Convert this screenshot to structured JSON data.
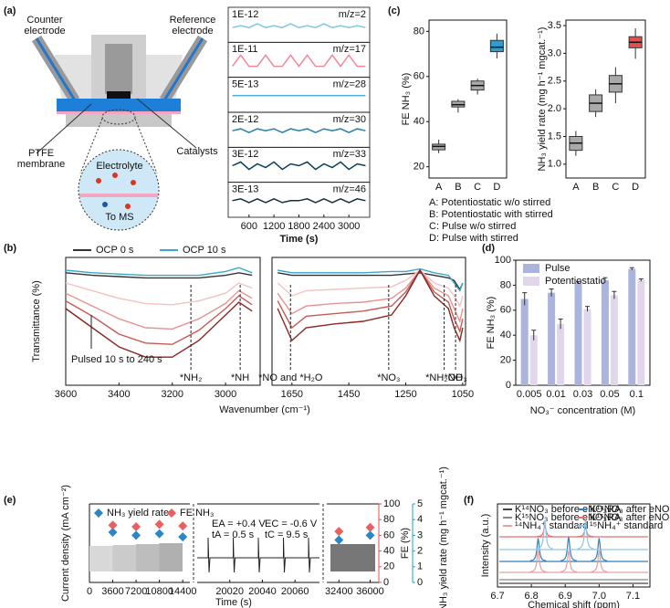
{
  "panel_labels": [
    "(a)",
    "(b)",
    "(c)",
    "(d)",
    "(e)",
    "(f)"
  ],
  "diagram": {
    "labels": [
      "Counter electrode",
      "Reference electrode",
      "PTFE membrane",
      "Catalysts",
      "Electrolyte",
      "To MS"
    ]
  },
  "chart_data": [
    {
      "type": "line",
      "stacked": true,
      "xlabel": "Time (s)",
      "xlim": [
        100,
        3500
      ],
      "xticks": [
        600,
        1200,
        1800,
        2400,
        3000
      ],
      "x": [
        200,
        400,
        600,
        800,
        1000,
        1200,
        1400,
        1600,
        1800,
        2000,
        2200,
        2400,
        2600,
        2800,
        3000,
        3200,
        3400
      ],
      "series": [
        {
          "name": "m/z=2",
          "scale_label": "1E-12",
          "color": "#7ec8e3",
          "values": [
            0.4,
            0.5,
            0.4,
            0.6,
            0.4,
            0.5,
            0.4,
            0.6,
            0.4,
            0.5,
            0.4,
            0.6,
            0.4,
            0.5,
            0.4,
            0.5,
            0.4
          ]
        },
        {
          "name": "m/z=17",
          "scale_label": "1E-11",
          "color": "#f08a9a",
          "values": [
            0.2,
            0.8,
            0.2,
            0.2,
            0.8,
            0.2,
            0.2,
            0.8,
            0.2,
            0.8,
            0.2,
            0.2,
            0.8,
            0.2,
            0.8,
            0.2,
            0.2
          ]
        },
        {
          "name": "m/z=28",
          "scale_label": "5E-13",
          "color": "#4fb0d0",
          "values": [
            0.5,
            0.5,
            0.5,
            0.5,
            0.5,
            0.5,
            0.5,
            0.5,
            0.5,
            0.5,
            0.5,
            0.5,
            0.5,
            0.5,
            0.5,
            0.5,
            0.5
          ]
        },
        {
          "name": "m/z=30",
          "scale_label": "2E-12",
          "color": "#2a7fa8",
          "values": [
            0.5,
            0.6,
            0.4,
            0.6,
            0.5,
            0.6,
            0.4,
            0.6,
            0.5,
            0.6,
            0.4,
            0.6,
            0.5,
            0.6,
            0.4,
            0.6,
            0.5
          ]
        },
        {
          "name": "m/z=33",
          "scale_label": "3E-12",
          "color": "#0b3c5a",
          "values": [
            0.5,
            0.7,
            0.3,
            0.6,
            0.4,
            0.7,
            0.3,
            0.6,
            0.5,
            0.7,
            0.3,
            0.6,
            0.4,
            0.7,
            0.3,
            0.6,
            0.5
          ]
        },
        {
          "name": "m/z=46",
          "scale_label": "3E-13",
          "color": "#14303f",
          "values": [
            0.5,
            0.6,
            0.4,
            0.6,
            0.4,
            0.6,
            0.4,
            0.5,
            0.5,
            0.6,
            0.4,
            0.6,
            0.4,
            0.6,
            0.4,
            0.6,
            0.5
          ]
        }
      ]
    },
    {
      "type": "line",
      "xlabel": "Wavenumber (cm⁻¹)",
      "ylabel": "Transmittance (%)",
      "xlim": [
        [
          3600,
          2870
        ],
        [
          1720,
          1040
        ]
      ],
      "xticks": [
        3600,
        3400,
        3200,
        3000,
        1650,
        1450,
        1250,
        1050
      ],
      "ylim": [
        0,
        100
      ],
      "x": [
        3600,
        3500,
        3400,
        3300,
        3200,
        3100,
        3000,
        2950,
        2900,
        1700,
        1650,
        1600,
        1500,
        1400,
        1300,
        1250,
        1200,
        1150,
        1100,
        1080,
        1060,
        1050
      ],
      "series": [
        {
          "name": "OCP 0 s",
          "color": "#333333",
          "values": [
            88,
            86,
            85,
            84,
            84,
            84,
            86,
            88,
            86,
            88,
            86,
            86,
            86,
            86,
            86,
            87,
            88,
            86,
            84,
            82,
            75,
            80
          ]
        },
        {
          "name": "OCP 10 s",
          "color": "#3aa7c9",
          "values": [
            90,
            88,
            87,
            86,
            86,
            86,
            89,
            92,
            88,
            90,
            88,
            88,
            88,
            88,
            89,
            89,
            91,
            88,
            86,
            80,
            74,
            80
          ]
        },
        {
          "color": "#f4c2c2",
          "values": [
            80,
            74,
            68,
            64,
            63,
            66,
            72,
            80,
            76,
            80,
            70,
            74,
            75,
            76,
            77,
            82,
            90,
            80,
            76,
            70,
            62,
            70
          ]
        },
        {
          "color": "#e8938f",
          "values": [
            72,
            62,
            52,
            45,
            44,
            52,
            64,
            74,
            68,
            72,
            56,
            62,
            64,
            65,
            68,
            76,
            90,
            76,
            70,
            60,
            50,
            60
          ]
        },
        {
          "color": "#c65a55",
          "values": [
            66,
            54,
            40,
            33,
            32,
            43,
            60,
            70,
            63,
            66,
            45,
            54,
            56,
            58,
            62,
            73,
            90,
            73,
            65,
            52,
            42,
            52
          ]
        },
        {
          "color": "#8b2525",
          "values": [
            60,
            45,
            30,
            22,
            22,
            35,
            55,
            65,
            58,
            60,
            35,
            45,
            48,
            50,
            55,
            70,
            90,
            70,
            60,
            45,
            35,
            45
          ]
        }
      ],
      "pulsed_label": "Pulsed 10 s to 240 s",
      "annotations": [
        {
          "text": "*NH₂",
          "x": 3130
        },
        {
          "text": "*NH",
          "x": 2945
        },
        {
          "text": "*NO and *H₂O",
          "x": 1655
        },
        {
          "text": "*NO₃",
          "x": 1310
        },
        {
          "text": "*NH₂OH",
          "x": 1115
        },
        {
          "text": "*NO₃",
          "x": 1075
        }
      ]
    },
    {
      "type": "box",
      "ylabel": "FE NH₃ (%)",
      "ylim": [
        15,
        85
      ],
      "yticks": [
        20,
        40,
        60,
        80
      ],
      "categories": [
        "A",
        "B",
        "C",
        "D"
      ],
      "colors": [
        "#aaaaaa",
        "#aaaaaa",
        "#aaaaaa",
        "#2a9fd6"
      ],
      "min": [
        26,
        44,
        52,
        68
      ],
      "q1": [
        27.5,
        46.5,
        54,
        71
      ],
      "median": [
        29,
        47.5,
        56,
        73
      ],
      "q3": [
        30,
        49,
        58,
        76
      ],
      "max": [
        32,
        50,
        59,
        79
      ],
      "notes": [
        "A: Potentiostatic w/o stirred",
        "B: Potentiostatic with stirred",
        "C: Pulse w/o stirred",
        "D: Pulse with stirred"
      ]
    },
    {
      "type": "box",
      "ylabel": "NH₃ yield rate (mg h⁻¹ mgcat.⁻¹)",
      "ylim": [
        0.75,
        3.6
      ],
      "yticks": [
        {
          "value": 1,
          "label": "1.0"
        },
        1.5,
        {
          "value": 2,
          "label": "2.0"
        },
        2.5,
        {
          "value": 3,
          "label": "3.0"
        },
        3.5
      ],
      "categories": [
        "A",
        "B",
        "C",
        "D"
      ],
      "colors": [
        "#aaaaaa",
        "#aaaaaa",
        "#aaaaaa",
        "#e35050"
      ],
      "min": [
        1.15,
        1.85,
        2.1,
        2.9
      ],
      "q1": [
        1.25,
        1.95,
        2.3,
        3.1
      ],
      "median": [
        1.38,
        2.1,
        2.45,
        3.2
      ],
      "q3": [
        1.5,
        2.25,
        2.6,
        3.3
      ],
      "max": [
        1.6,
        2.35,
        2.75,
        3.45
      ]
    },
    {
      "type": "bar",
      "ylabel": "FE NH₃ (%)",
      "xlabel": "NO₃⁻ concentration (M)",
      "ylim": [
        0,
        100
      ],
      "yticks": [
        0,
        20,
        40,
        60,
        80,
        100
      ],
      "categories": [
        "0.005",
        "0.01",
        "0.03",
        "0.05",
        "0.1"
      ],
      "legend": "upper left",
      "series": [
        {
          "name": "Pulse",
          "color": "#aab4dc",
          "values": [
            69,
            74,
            82,
            84,
            93
          ],
          "errors": [
            5,
            3,
            1,
            2,
            1
          ]
        },
        {
          "name": "Potentiostatic",
          "color": "#e2d6ec",
          "values": [
            40,
            49,
            61,
            72,
            84
          ],
          "errors": [
            4,
            4,
            2,
            3,
            1
          ]
        }
      ]
    },
    {
      "type": "scatter",
      "xlabel": "Time (s)",
      "ylabel": "Current density (mA cm⁻²)",
      "y2label": "FE (%)",
      "y3label": "NH₃ yield rate (mg h⁻¹ mgcat.⁻¹)",
      "xlim": [
        [
          0,
          15500
        ],
        [
          20000,
          20075
        ],
        [
          31000,
          37000
        ]
      ],
      "xticks": [
        0,
        3600,
        7200,
        10800,
        14400,
        20020,
        20040,
        20060,
        32400,
        36000
      ],
      "y2lim": [
        0,
        100
      ],
      "y2ticks": [
        0,
        20,
        40,
        60,
        80,
        100
      ],
      "y3lim": [
        0,
        5
      ],
      "y3ticks": [
        0,
        1,
        2,
        3,
        4,
        5
      ],
      "x": [
        3600,
        7200,
        10800,
        14400,
        32400,
        36000
      ],
      "series": [
        {
          "name": "NH₃ yield rate",
          "color": "#2a86c8",
          "axis": "y3",
          "values": [
            3.2,
            3.0,
            3.1,
            2.9,
            2.7,
            3.0
          ]
        },
        {
          "name": "FE NH₃",
          "color": "#e86060",
          "axis": "y2",
          "values": [
            73,
            71,
            74,
            72,
            65,
            70
          ]
        }
      ],
      "annotations": [
        "EA = +0.4 V",
        "tA = 0.5 s",
        "EC = -0.6 V",
        "tC = 9.5 s"
      ]
    },
    {
      "type": "peaks",
      "xlabel": "Chemical shift (ppm)",
      "ylabel": "Intensity (a.u.)",
      "xlim": [
        6.7,
        7.15
      ],
      "xticks": [
        6.7,
        6.8,
        6.9,
        {
          "value": 7,
          "label": "7.0"
        },
        7.1
      ],
      "series": [
        {
          "name": "K¹⁴NO₃ before eNO₃RA",
          "color": "#444444",
          "x": [],
          "values": []
        },
        {
          "name": "K¹⁴NO₃ after eNO₃RA",
          "color": "#2e7fb8",
          "x": [
            6.82,
            6.91,
            7.0
          ],
          "values": [
            30,
            32,
            30
          ]
        },
        {
          "name": "K¹⁵NO₃ before eNO₃RA",
          "color": "#888888",
          "x": [],
          "values": []
        },
        {
          "name": "K¹⁵NO₃ after eNO₃RA",
          "color": "#e8706a",
          "x": [
            6.84,
            6.96
          ],
          "values": [
            14,
            12
          ]
        },
        {
          "name": "¹⁴NH₄⁺ standard",
          "color": "#e6a0a0",
          "x": [
            6.82,
            6.91,
            7.0
          ],
          "values": [
            28,
            28,
            28
          ]
        },
        {
          "name": "¹⁵NH₄⁺ standard",
          "color": "#8ec5e6",
          "x": [
            6.84,
            6.96
          ],
          "values": [
            38,
            38
          ]
        }
      ]
    }
  ]
}
